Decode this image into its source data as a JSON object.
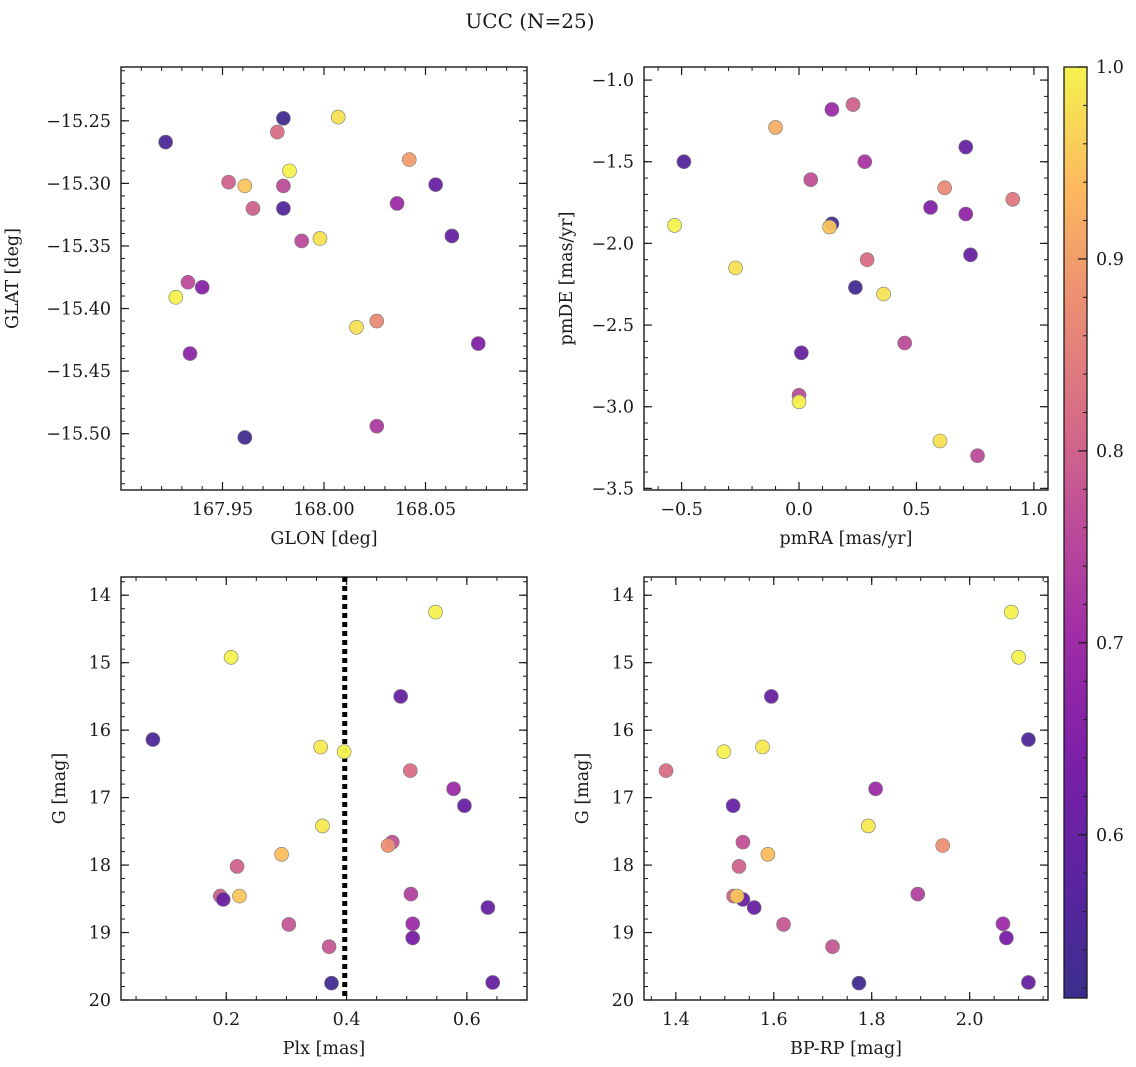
{
  "figure_title": "UCC (N=25)",
  "chart_data": [
    {
      "type": "scatter",
      "name": "glon-glat",
      "xlabel": "GLON [deg]",
      "ylabel": "GLAT [deg]",
      "xlim": [
        167.9,
        168.1
      ],
      "ylim": [
        -15.545,
        -15.207
      ],
      "xticks": [
        167.95,
        168.0,
        168.05
      ],
      "xtick_labels": [
        "167.95",
        "168.00",
        "168.05"
      ],
      "yticks": [
        -15.25,
        -15.3,
        -15.35,
        -15.4,
        -15.45,
        -15.5
      ],
      "ytick_labels": [
        "−15.25",
        "−15.30",
        "−15.35",
        "−15.40",
        "−15.45",
        "−15.50"
      ],
      "minor_x": 0.01,
      "minor_y": 0.01,
      "y_inverted": false,
      "points": [
        {
          "x": 167.922,
          "y": -15.267,
          "c": 0.55
        },
        {
          "x": 167.98,
          "y": -15.248,
          "c": 0.53
        },
        {
          "x": 168.007,
          "y": -15.247,
          "c": 0.98
        },
        {
          "x": 167.977,
          "y": -15.259,
          "c": 0.82
        },
        {
          "x": 168.042,
          "y": -15.281,
          "c": 0.9
        },
        {
          "x": 167.953,
          "y": -15.299,
          "c": 0.8
        },
        {
          "x": 167.961,
          "y": -15.302,
          "c": 0.95
        },
        {
          "x": 167.98,
          "y": -15.302,
          "c": 0.76
        },
        {
          "x": 167.983,
          "y": -15.29,
          "c": 1.0
        },
        {
          "x": 168.055,
          "y": -15.301,
          "c": 0.6
        },
        {
          "x": 167.965,
          "y": -15.32,
          "c": 0.8
        },
        {
          "x": 167.98,
          "y": -15.32,
          "c": 0.56
        },
        {
          "x": 168.036,
          "y": -15.316,
          "c": 0.7
        },
        {
          "x": 167.989,
          "y": -15.346,
          "c": 0.76
        },
        {
          "x": 167.998,
          "y": -15.344,
          "c": 0.98
        },
        {
          "x": 168.063,
          "y": -15.342,
          "c": 0.6
        },
        {
          "x": 167.933,
          "y": -15.379,
          "c": 0.76
        },
        {
          "x": 167.94,
          "y": -15.383,
          "c": 0.66
        },
        {
          "x": 167.927,
          "y": -15.391,
          "c": 1.0
        },
        {
          "x": 168.016,
          "y": -15.415,
          "c": 0.98
        },
        {
          "x": 168.026,
          "y": -15.41,
          "c": 0.87
        },
        {
          "x": 168.076,
          "y": -15.428,
          "c": 0.65
        },
        {
          "x": 167.934,
          "y": -15.436,
          "c": 0.67
        },
        {
          "x": 168.026,
          "y": -15.494,
          "c": 0.73
        },
        {
          "x": 167.961,
          "y": -15.503,
          "c": 0.53
        }
      ]
    },
    {
      "type": "scatter",
      "name": "pmra-pmde",
      "xlabel": "pmRA [mas/yr]",
      "ylabel": "pmDE [mas/yr]",
      "xlim": [
        -0.66,
        1.06
      ],
      "ylim": [
        -3.51,
        -0.92
      ],
      "xticks": [
        -0.5,
        0.0,
        0.5,
        1.0
      ],
      "xtick_labels": [
        "−0.5",
        "0.0",
        "0.5",
        "1.0"
      ],
      "yticks": [
        -1.0,
        -1.5,
        -2.0,
        -2.5,
        -3.0,
        -3.5
      ],
      "ytick_labels": [
        "−1.0",
        "−1.5",
        "−2.0",
        "−2.5",
        "−3.0",
        "−3.5"
      ],
      "minor_x": 0.1,
      "minor_y": 0.1,
      "y_inverted": false,
      "points": [
        {
          "x": 0.23,
          "y": -1.15,
          "c": 0.8
        },
        {
          "x": -0.1,
          "y": -1.29,
          "c": 0.92
        },
        {
          "x": 0.14,
          "y": -1.18,
          "c": 0.7
        },
        {
          "x": -0.49,
          "y": -1.5,
          "c": 0.56
        },
        {
          "x": 0.28,
          "y": -1.5,
          "c": 0.72
        },
        {
          "x": 0.71,
          "y": -1.41,
          "c": 0.6
        },
        {
          "x": 0.05,
          "y": -1.61,
          "c": 0.77
        },
        {
          "x": 0.62,
          "y": -1.66,
          "c": 0.87
        },
        {
          "x": 0.91,
          "y": -1.73,
          "c": 0.84
        },
        {
          "x": 0.56,
          "y": -1.78,
          "c": 0.65
        },
        {
          "x": 0.71,
          "y": -1.82,
          "c": 0.68
        },
        {
          "x": 0.14,
          "y": -1.88,
          "c": 0.53
        },
        {
          "x": 0.13,
          "y": -1.9,
          "c": 0.95
        },
        {
          "x": -0.53,
          "y": -1.89,
          "c": 1.0
        },
        {
          "x": 0.29,
          "y": -2.1,
          "c": 0.82
        },
        {
          "x": 0.73,
          "y": -2.07,
          "c": 0.6
        },
        {
          "x": -0.27,
          "y": -2.15,
          "c": 0.98
        },
        {
          "x": 0.24,
          "y": -2.27,
          "c": 0.53
        },
        {
          "x": 0.36,
          "y": -2.31,
          "c": 0.98
        },
        {
          "x": 0.45,
          "y": -2.61,
          "c": 0.76
        },
        {
          "x": 0.01,
          "y": -2.67,
          "c": 0.6
        },
        {
          "x": 0.0,
          "y": -2.93,
          "c": 0.76
        },
        {
          "x": 0.0,
          "y": -2.97,
          "c": 1.0
        },
        {
          "x": 0.6,
          "y": -3.21,
          "c": 0.98
        },
        {
          "x": 0.76,
          "y": -3.3,
          "c": 0.76
        }
      ]
    },
    {
      "type": "scatter",
      "name": "plx-g",
      "xlabel": "Plx [mas]",
      "ylabel": "G [mag]",
      "xlim": [
        0.025,
        0.7
      ],
      "ylim": [
        20.0,
        13.73
      ],
      "xticks": [
        0.2,
        0.4,
        0.6
      ],
      "xtick_labels": [
        "0.2",
        "0.4",
        "0.6"
      ],
      "yticks": [
        14,
        15,
        16,
        17,
        18,
        19,
        20
      ],
      "ytick_labels": [
        "14",
        "15",
        "16",
        "17",
        "18",
        "19",
        "20"
      ],
      "minor_x": 0.05,
      "minor_y": 0.2,
      "y_inverted": true,
      "vline": 0.397,
      "points": [
        {
          "x": 0.548,
          "y": 14.25,
          "c": 1.0
        },
        {
          "x": 0.208,
          "y": 14.92,
          "c": 1.0
        },
        {
          "x": 0.49,
          "y": 15.5,
          "c": 0.6
        },
        {
          "x": 0.078,
          "y": 16.14,
          "c": 0.55
        },
        {
          "x": 0.357,
          "y": 16.25,
          "c": 0.99
        },
        {
          "x": 0.396,
          "y": 16.32,
          "c": 1.0
        },
        {
          "x": 0.506,
          "y": 16.6,
          "c": 0.82
        },
        {
          "x": 0.578,
          "y": 16.87,
          "c": 0.7
        },
        {
          "x": 0.596,
          "y": 17.12,
          "c": 0.6
        },
        {
          "x": 0.36,
          "y": 17.42,
          "c": 0.99
        },
        {
          "x": 0.476,
          "y": 17.66,
          "c": 0.77
        },
        {
          "x": 0.469,
          "y": 17.71,
          "c": 0.88
        },
        {
          "x": 0.292,
          "y": 17.84,
          "c": 0.94
        },
        {
          "x": 0.218,
          "y": 18.02,
          "c": 0.8
        },
        {
          "x": 0.19,
          "y": 18.46,
          "c": 0.8
        },
        {
          "x": 0.195,
          "y": 18.51,
          "c": 0.6
        },
        {
          "x": 0.222,
          "y": 18.46,
          "c": 0.95
        },
        {
          "x": 0.507,
          "y": 18.43,
          "c": 0.74
        },
        {
          "x": 0.635,
          "y": 18.63,
          "c": 0.6
        },
        {
          "x": 0.304,
          "y": 18.88,
          "c": 0.78
        },
        {
          "x": 0.51,
          "y": 18.87,
          "c": 0.7
        },
        {
          "x": 0.51,
          "y": 19.08,
          "c": 0.63
        },
        {
          "x": 0.371,
          "y": 19.21,
          "c": 0.78
        },
        {
          "x": 0.375,
          "y": 19.75,
          "c": 0.53
        },
        {
          "x": 0.643,
          "y": 19.74,
          "c": 0.6
        }
      ]
    },
    {
      "type": "scatter",
      "name": "bprp-g",
      "xlabel": "BP-RP [mag]",
      "ylabel": "G [mag]",
      "xlim": [
        1.335,
        2.16
      ],
      "ylim": [
        20.0,
        13.73
      ],
      "xticks": [
        1.4,
        1.6,
        1.8,
        2.0
      ],
      "xtick_labels": [
        "1.4",
        "1.6",
        "1.8",
        "2.0"
      ],
      "yticks": [
        14,
        15,
        16,
        17,
        18,
        19,
        20
      ],
      "ytick_labels": [
        "14",
        "15",
        "16",
        "17",
        "18",
        "19",
        "20"
      ],
      "minor_x": 0.05,
      "minor_y": 0.2,
      "y_inverted": true,
      "points": [
        {
          "x": 2.085,
          "y": 14.25,
          "c": 1.0
        },
        {
          "x": 2.1,
          "y": 14.92,
          "c": 1.0
        },
        {
          "x": 1.595,
          "y": 15.5,
          "c": 0.6
        },
        {
          "x": 2.12,
          "y": 16.14,
          "c": 0.55
        },
        {
          "x": 1.577,
          "y": 16.25,
          "c": 0.99
        },
        {
          "x": 1.498,
          "y": 16.32,
          "c": 1.0
        },
        {
          "x": 1.38,
          "y": 16.6,
          "c": 0.82
        },
        {
          "x": 1.808,
          "y": 16.87,
          "c": 0.7
        },
        {
          "x": 1.517,
          "y": 17.12,
          "c": 0.6
        },
        {
          "x": 1.793,
          "y": 17.42,
          "c": 0.99
        },
        {
          "x": 1.537,
          "y": 17.66,
          "c": 0.77
        },
        {
          "x": 1.945,
          "y": 17.71,
          "c": 0.88
        },
        {
          "x": 1.588,
          "y": 17.84,
          "c": 0.94
        },
        {
          "x": 1.529,
          "y": 18.02,
          "c": 0.8
        },
        {
          "x": 1.518,
          "y": 18.46,
          "c": 0.8
        },
        {
          "x": 1.537,
          "y": 18.51,
          "c": 0.6
        },
        {
          "x": 1.525,
          "y": 18.46,
          "c": 0.95
        },
        {
          "x": 1.894,
          "y": 18.43,
          "c": 0.74
        },
        {
          "x": 1.56,
          "y": 18.63,
          "c": 0.6
        },
        {
          "x": 1.62,
          "y": 18.88,
          "c": 0.78
        },
        {
          "x": 2.068,
          "y": 18.87,
          "c": 0.7
        },
        {
          "x": 2.075,
          "y": 19.08,
          "c": 0.63
        },
        {
          "x": 1.72,
          "y": 19.21,
          "c": 0.78
        },
        {
          "x": 1.774,
          "y": 19.75,
          "c": 0.53
        },
        {
          "x": 2.12,
          "y": 19.74,
          "c": 0.6
        }
      ]
    }
  ],
  "colorbar": {
    "colormap": "plasma",
    "range": [
      0.515,
      1.0
    ],
    "ticks": [
      0.6,
      0.7,
      0.8,
      0.9,
      1.0
    ],
    "tick_labels": [
      "0.6",
      "0.7",
      "0.8",
      "0.9",
      "1.0"
    ],
    "minor": 0.02
  },
  "colors": {
    "vline": "#000000",
    "axis": "#1a1a1a",
    "marker_edge": "#7a7a7a"
  }
}
